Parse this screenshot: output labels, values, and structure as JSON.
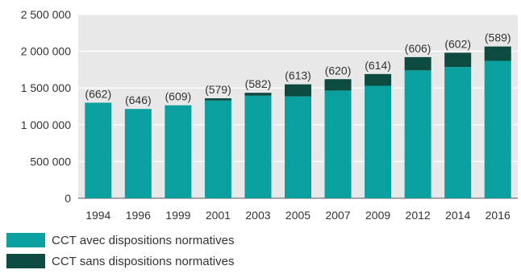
{
  "chart_data": {
    "type": "bar",
    "stacked": true,
    "categories": [
      "1994",
      "1996",
      "1999",
      "2001",
      "2003",
      "2005",
      "2007",
      "2009",
      "2012",
      "2014",
      "2016"
    ],
    "series": [
      {
        "name": "CCT avec dispositions normatives",
        "color": "#0aa0a0",
        "values": [
          1300000,
          1215000,
          1265000,
          1330000,
          1395000,
          1385000,
          1465000,
          1530000,
          1740000,
          1785000,
          1870000
        ]
      },
      {
        "name": "CCT sans dispositions normatives",
        "color": "#0d4a3f",
        "values": [
          0,
          0,
          0,
          30000,
          40000,
          165000,
          155000,
          160000,
          180000,
          195000,
          195000
        ]
      }
    ],
    "data_labels": [
      "(662)",
      "(646)",
      "(609)",
      "(579)",
      "(582)",
      "(613)",
      "(620)",
      "(614)",
      "(606)",
      "(602)",
      "(589)"
    ],
    "y_ticks": [
      "0",
      "500 000",
      "1 000 000",
      "1 500 000",
      "2 000 000",
      "2 500 000"
    ],
    "ylim": [
      0,
      2500000
    ],
    "grid": true,
    "plot_background": "#e8e8e8",
    "legend_position": "bottom-left"
  }
}
